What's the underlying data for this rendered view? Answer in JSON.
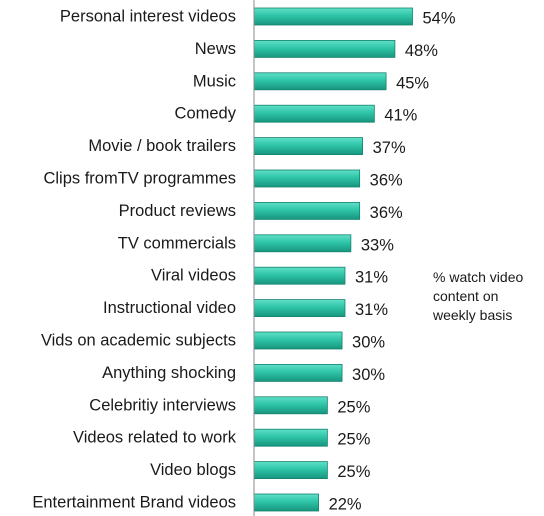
{
  "chart_data": {
    "type": "bar",
    "orientation": "horizontal",
    "categories": [
      "Personal interest videos",
      "News",
      "Music",
      "Comedy",
      "Movie / book trailers",
      "Clips fromTV programmes",
      "Product reviews",
      "TV commercials",
      "Viral videos",
      "Instructional video",
      "Vids on academic subjects",
      "Anything shocking",
      "Celebritiy interviews",
      "Videos related to work",
      "Video blogs",
      "Entertainment Brand videos"
    ],
    "values": [
      54,
      48,
      45,
      41,
      37,
      36,
      36,
      33,
      31,
      31,
      30,
      30,
      25,
      25,
      25,
      22
    ],
    "value_labels": [
      "54%",
      "48%",
      "45%",
      "41%",
      "37%",
      "36%",
      "36%",
      "33%",
      "31%",
      "31%",
      "30%",
      "30%",
      "25%",
      "25%",
      "25%",
      "22%"
    ],
    "value_unit": "%",
    "xlim": [
      0,
      100
    ],
    "grid": false,
    "legend": "none",
    "annotation": "% watch video content on weekly basis",
    "bar_color": "#2ec4a8",
    "bar_edge_color": "#14826e"
  }
}
